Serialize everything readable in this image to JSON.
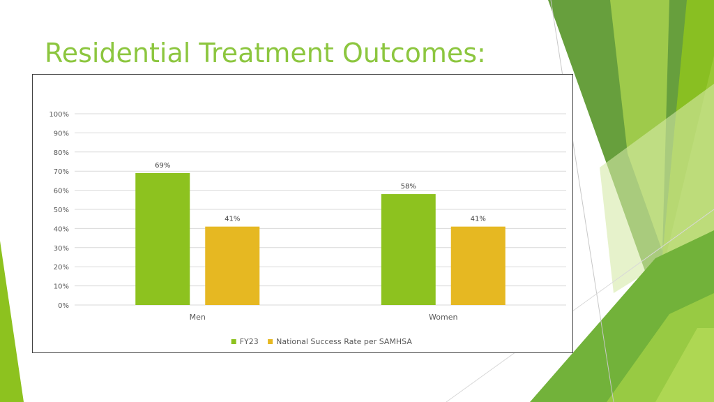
{
  "slide": {
    "title": "Residential Treatment Outcomes:"
  },
  "colors": {
    "title": "#8cc63f",
    "fy23": "#8dc21f",
    "national": "#e6b822",
    "deco_dark_green": "#5a8f2f",
    "deco_light_green": "#a5d04a"
  },
  "chart_data": {
    "type": "bar",
    "categories": [
      "Men",
      "Women"
    ],
    "series": [
      {
        "name": "FY23",
        "values": [
          69,
          58
        ],
        "labels": [
          "69%",
          "58%"
        ]
      },
      {
        "name": "National Success Rate per SAMHSA",
        "values": [
          41,
          41
        ],
        "labels": [
          "41%",
          "41%"
        ]
      }
    ],
    "ylim": [
      0,
      100
    ],
    "yticks": [
      "0%",
      "10%",
      "20%",
      "30%",
      "40%",
      "50%",
      "60%",
      "70%",
      "80%",
      "90%",
      "100%"
    ],
    "grid": true,
    "legend": "bottom"
  }
}
